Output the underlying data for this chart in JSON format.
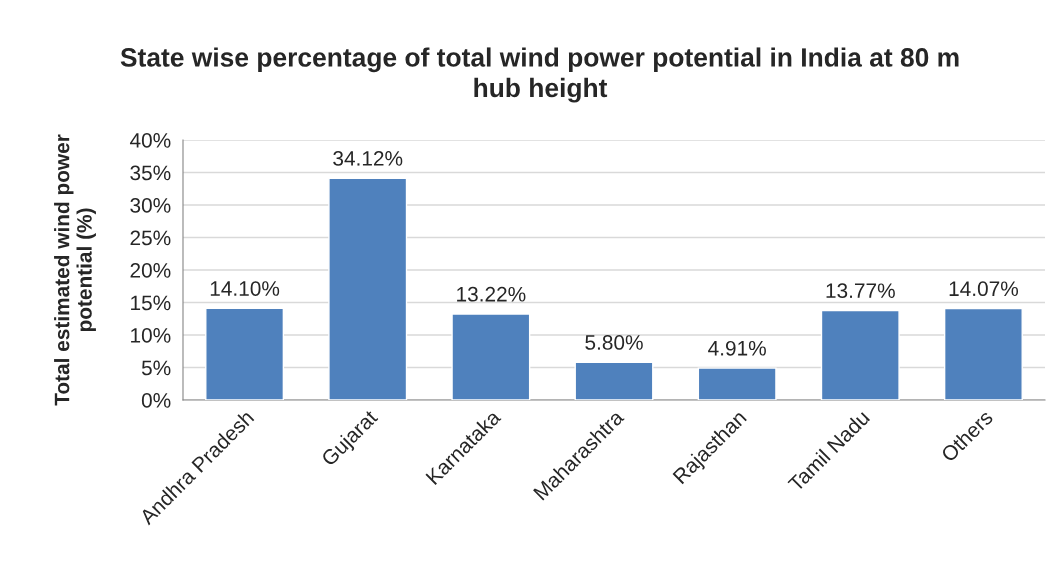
{
  "chart_data": {
    "type": "bar",
    "title": "State wise percentage of total wind power potential in India at 80 m hub height",
    "ylabel": "Total estimated wind power potential (%)",
    "categories": [
      "Andhra Pradesh",
      "Gujarat",
      "Karnataka",
      "Maharashtra",
      "Rajasthan",
      "Tamil Nadu",
      "Others"
    ],
    "values": [
      14.1,
      34.12,
      13.22,
      5.8,
      4.91,
      13.77,
      14.07
    ],
    "value_labels": [
      "14.10%",
      "34.12%",
      "13.22%",
      "5.80%",
      "4.91%",
      "13.77%",
      "14.07%"
    ],
    "color": "#4f81bd",
    "ylim": [
      0,
      40
    ],
    "yticks": [
      {
        "value": 0,
        "label": "0%"
      },
      {
        "value": 5,
        "label": "5%"
      },
      {
        "value": 10,
        "label": "10%"
      },
      {
        "value": 15,
        "label": "15%"
      },
      {
        "value": 20,
        "label": "20%"
      },
      {
        "value": 25,
        "label": "25%"
      },
      {
        "value": 30,
        "label": "30%"
      },
      {
        "value": 35,
        "label": "35%"
      },
      {
        "value": 40,
        "label": "40%"
      }
    ],
    "grid": "y",
    "legend": false
  }
}
